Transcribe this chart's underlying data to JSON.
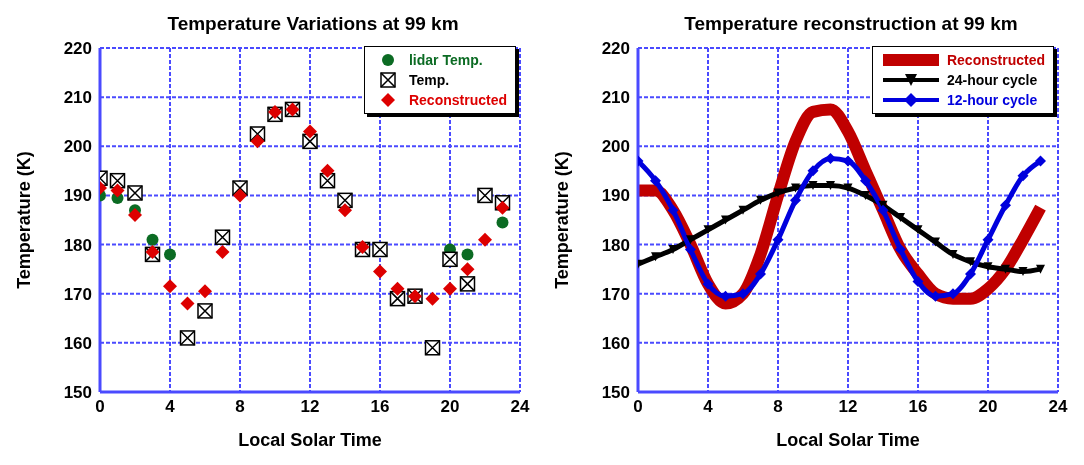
{
  "chart_data": [
    {
      "type": "scatter",
      "title": "Temperature Variations at 99 km",
      "xlabel": "Local Solar Time",
      "ylabel": "Temperature (K)",
      "xlim": [
        0,
        24
      ],
      "xticks": [
        0,
        4,
        8,
        12,
        16,
        20,
        24
      ],
      "ylim": [
        150,
        220
      ],
      "yticks": [
        150,
        160,
        170,
        180,
        190,
        200,
        210,
        220
      ],
      "grid": true,
      "legend": "top right",
      "series": [
        {
          "name": "lidar Temp.",
          "color": "#0b6b23",
          "marker": "circle",
          "x": [
            0,
            1,
            2,
            3,
            4,
            20,
            21,
            23
          ],
          "values": [
            190,
            189.5,
            187,
            181,
            178,
            179,
            178,
            184.5
          ]
        },
        {
          "name": "Temp.",
          "color": "#000000",
          "marker": "square",
          "x": [
            0,
            1,
            2,
            3,
            5,
            6,
            7,
            8,
            9,
            10,
            11,
            12,
            13,
            14,
            15,
            16,
            17,
            18,
            19,
            20,
            21,
            22,
            23
          ],
          "values": [
            193.5,
            193,
            190.5,
            178,
            161,
            166.5,
            181.5,
            191.5,
            202.5,
            206.5,
            207.5,
            201,
            193,
            189,
            179,
            179,
            169,
            169.5,
            159,
            177,
            172,
            190,
            188.5
          ]
        },
        {
          "name": "Reconstructed",
          "color": "#dd0000",
          "marker": "diamond",
          "x": [
            0,
            1,
            2,
            3,
            4,
            5,
            6,
            7,
            8,
            9,
            10,
            11,
            12,
            13,
            14,
            15,
            16,
            17,
            18,
            19,
            20,
            21,
            22,
            23
          ],
          "values": [
            191.5,
            191,
            186,
            178.5,
            171.5,
            168,
            170.5,
            178.5,
            190,
            201,
            207,
            207.5,
            203,
            195,
            187,
            179.5,
            174.5,
            171,
            169.5,
            169,
            171,
            175,
            181,
            187.5
          ]
        }
      ]
    },
    {
      "type": "line",
      "title": "Temperature reconstruction at 99 km",
      "xlabel": "Local Solar Time",
      "ylabel": "Temperature (K)",
      "xlim": [
        0,
        24
      ],
      "xticks": [
        0,
        4,
        8,
        12,
        16,
        20,
        24
      ],
      "ylim": [
        150,
        220
      ],
      "yticks": [
        150,
        160,
        170,
        180,
        190,
        200,
        210,
        220
      ],
      "grid": true,
      "legend": "top right",
      "x": [
        0,
        1,
        2,
        3,
        4,
        5,
        6,
        7,
        8,
        9,
        10,
        11,
        12,
        13,
        14,
        15,
        16,
        17,
        18,
        19,
        20,
        21,
        22,
        23
      ],
      "series": [
        {
          "name": "Reconstructed",
          "color": "#c00000",
          "marker": "none",
          "values": [
            191,
            191,
            187,
            180,
            172,
            168,
            170,
            178,
            190,
            201,
            207,
            207.5,
            203,
            195,
            187,
            179,
            174,
            170,
            169,
            169,
            171,
            175,
            181,
            187.5
          ]
        },
        {
          "name": "24-hour cycle",
          "color": "#000000",
          "marker": "triangle",
          "values": [
            176,
            177.5,
            179,
            181,
            183,
            185,
            187,
            189,
            190.5,
            191.5,
            192,
            192,
            191.5,
            190,
            188,
            185.5,
            183,
            180.5,
            178,
            176.5,
            175.5,
            175,
            174.5,
            175
          ]
        },
        {
          "name": "12-hour cycle",
          "color": "#0000dd",
          "marker": "diamond",
          "values": [
            197,
            193,
            187,
            179,
            172,
            169.5,
            170,
            174,
            181,
            189,
            195,
            197.5,
            197,
            193,
            187,
            179,
            172.5,
            169.5,
            170,
            174,
            181,
            188,
            194,
            197
          ]
        }
      ]
    }
  ]
}
